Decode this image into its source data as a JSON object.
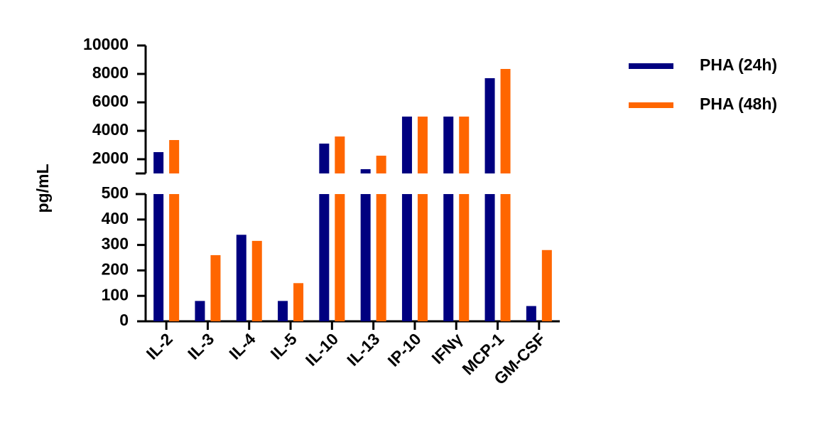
{
  "chart_data": {
    "type": "bar",
    "y_label": "pg/mL",
    "categories": [
      "IL-2",
      "IL-3",
      "IL-4",
      "IL-5",
      "IL-10",
      "IL-13",
      "IP-10",
      "IFNγ",
      "MCP-1",
      "GM-CSF"
    ],
    "series": [
      {
        "name": "PHA (24h)",
        "color": "#000080",
        "values": [
          2500,
          80,
          340,
          80,
          3100,
          1300,
          5000,
          5000,
          7700,
          60
        ]
      },
      {
        "name": "PHA (48h)",
        "color": "#ff6600",
        "values": [
          3350,
          260,
          316,
          150,
          3600,
          2250,
          5000,
          5000,
          8350,
          280
        ]
      }
    ],
    "y_segments": [
      {
        "ylim": [
          0,
          500
        ],
        "yticks": [
          0,
          100,
          200,
          300,
          400,
          500
        ]
      },
      {
        "ylim": [
          1000,
          10000
        ],
        "yticks": [
          2000,
          4000,
          6000,
          8000,
          10000
        ]
      }
    ],
    "legend": "top-right"
  }
}
